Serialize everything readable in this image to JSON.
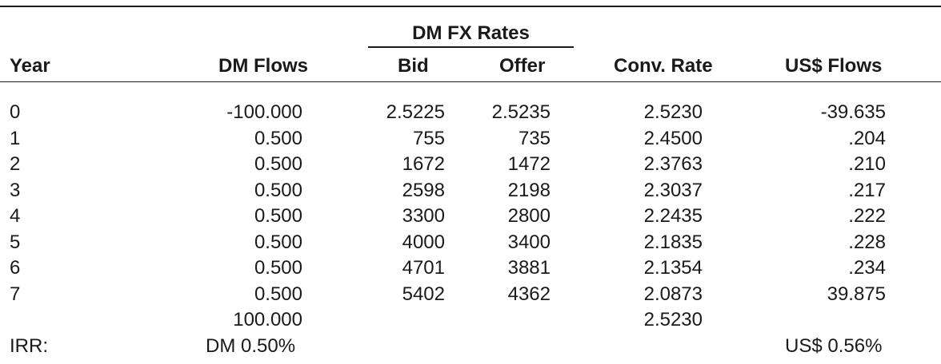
{
  "headers": {
    "group": "DM FX Rates",
    "year": "Year",
    "dm_flows": "DM Flows",
    "bid": "Bid",
    "offer": "Offer",
    "conv_rate": "Conv. Rate",
    "us_flows": "US$ Flows"
  },
  "rows": [
    {
      "year": "0",
      "dm": "-100.000",
      "bid": "2.5225",
      "offer": "2.5235",
      "conv": "2.5230",
      "us": "-39.635"
    },
    {
      "year": "1",
      "dm": "0.500",
      "bid": "755",
      "offer": "735",
      "conv": "2.4500",
      "us": ".204"
    },
    {
      "year": "2",
      "dm": "0.500",
      "bid": "1672",
      "offer": "1472",
      "conv": "2.3763",
      "us": ".210"
    },
    {
      "year": "3",
      "dm": "0.500",
      "bid": "2598",
      "offer": "2198",
      "conv": "2.3037",
      "us": ".217"
    },
    {
      "year": "4",
      "dm": "0.500",
      "bid": "3300",
      "offer": "2800",
      "conv": "2.2435",
      "us": ".222"
    },
    {
      "year": "5",
      "dm": "0.500",
      "bid": "4000",
      "offer": "3400",
      "conv": "2.1835",
      "us": ".228"
    },
    {
      "year": "6",
      "dm": "0.500",
      "bid": "4701",
      "offer": "3881",
      "conv": "2.1354",
      "us": ".234"
    },
    {
      "year": "7",
      "dm": "0.500",
      "bid": "5402",
      "offer": "4362",
      "conv": "2.0873",
      "us": "39.875"
    },
    {
      "year": "",
      "dm": "100.000",
      "bid": "",
      "offer": "",
      "conv": "2.5230",
      "us": ""
    }
  ],
  "irr": {
    "label": "IRR:",
    "dm": "DM 0.50%",
    "us": "US$ 0.56%"
  }
}
